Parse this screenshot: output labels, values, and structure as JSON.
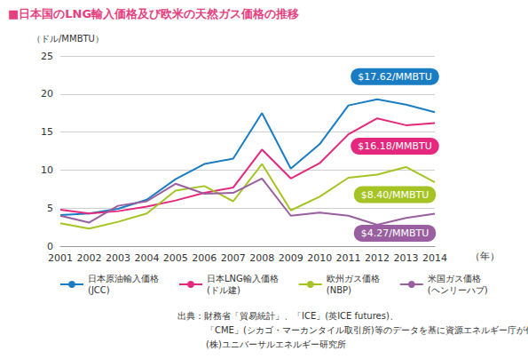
{
  "chart_data": {
    "type": "line",
    "title": "■日本国のLNG輸入価格及び欧米の天然ガス価格の推移",
    "y_label": "（ドル/MMBTU）",
    "x_label": "（年）",
    "categories": [
      "2001",
      "2002",
      "2003",
      "2004",
      "2005",
      "2006",
      "2007",
      "2008",
      "2009",
      "2010",
      "2011",
      "2012",
      "2013",
      "2014"
    ],
    "series": [
      {
        "name": "日本原油輸入価格\n(JCC)",
        "color": "#1a7dc4",
        "annotation": "$17.62/MMBTU",
        "values": [
          4.1,
          4.3,
          4.9,
          6.1,
          8.8,
          10.8,
          11.5,
          17.5,
          10.2,
          13.4,
          18.5,
          19.3,
          18.6,
          17.62
        ]
      },
      {
        "name": "日本LNG輸入価格\n(ドル建)",
        "color": "#e4287d",
        "annotation": "$16.18/MMBTU",
        "values": [
          4.8,
          4.3,
          4.6,
          5.2,
          6.0,
          7.0,
          7.7,
          12.7,
          8.9,
          10.9,
          14.7,
          16.8,
          15.9,
          16.18
        ]
      },
      {
        "name": "欧州ガス価格\n(NBP)",
        "color": "#a5c424",
        "annotation": "$8.40/MMBTU",
        "values": [
          3.0,
          2.3,
          3.2,
          4.3,
          7.3,
          7.9,
          5.9,
          10.8,
          4.7,
          6.5,
          9.0,
          9.4,
          10.4,
          8.4
        ]
      },
      {
        "name": "米国ガス価格\n(ヘンリーハブ)",
        "color": "#9a5fa0",
        "annotation": "$4.27/MMBTU",
        "values": [
          4.0,
          3.1,
          5.3,
          5.9,
          8.2,
          6.9,
          7.0,
          8.9,
          4.0,
          4.4,
          4.0,
          2.8,
          3.7,
          4.27
        ]
      }
    ],
    "ylim": [
      0,
      25
    ],
    "yticks": [
      0,
      5,
      10,
      15,
      20,
      25
    ],
    "grid": true,
    "legend": "bottom",
    "source": [
      "出典：財務省「貿易統計」、「ICE」(英ICE futures)、",
      "「CME」(シカゴ・マーカンタイル取引所)等のデータを基に資源エネルギー庁が作成",
      "(株)ユニバーサルエネルギー研究所"
    ]
  }
}
